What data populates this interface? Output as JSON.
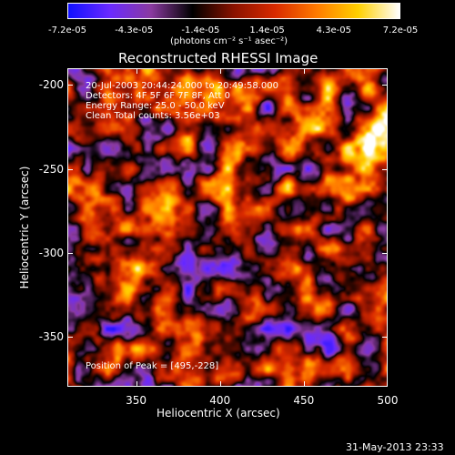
{
  "colorbar": {
    "ticks": [
      "-7.2e-05",
      "-4.3e-05",
      "-1.4e-05",
      "1.4e-05",
      "4.3e-05",
      "7.2e-05"
    ],
    "unit": "(photons cm⁻² s⁻¹ asec⁻²)",
    "colors": [
      "#1010ff",
      "#6a2aff",
      "#8a3aa0",
      "#000000",
      "#8a1200",
      "#d92a00",
      "#ff7a00",
      "#ffd000",
      "#ffffff"
    ]
  },
  "chart_data": {
    "type": "heatmap",
    "title": "Reconstructed RHESSI Image",
    "xlabel": "Heliocentric X (arcsec)",
    "ylabel": "Heliocentric Y (arcsec)",
    "xlim": [
      309,
      500
    ],
    "ylim": [
      -380,
      -190
    ],
    "xticks": [
      "350",
      "400",
      "450",
      "500"
    ],
    "yticks": [
      "-200",
      "-250",
      "-300",
      "-350"
    ],
    "annotations": {
      "time": "20-Jul-2003 20:44:24.000 to 20:49:58.000",
      "detectors": "Detectors: 4F 5F 6F 7F 8F, Att 0",
      "energy": "Energy Range: 25.0 - 50.0 keV",
      "clean": "Clean    Total counts: 3.56e+03",
      "peak": "Position of Peak = [495,-228]"
    },
    "peak": [
      495,
      -228
    ],
    "zrange": [
      -7.2e-05,
      7.2e-05
    ]
  },
  "footer": {
    "timestamp": "31-May-2013 23:33"
  }
}
